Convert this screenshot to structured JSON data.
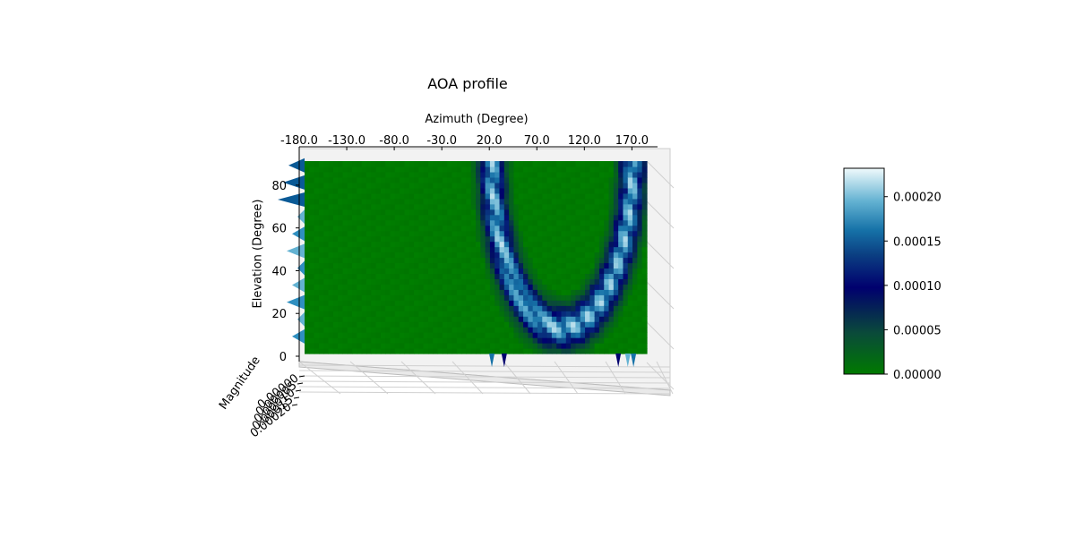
{
  "chart_data": {
    "type": "heatmap",
    "title": "AOA profile",
    "xlabel": "Azimuth (Degree)",
    "ylabel": "Elevation (Degree)",
    "zlabel": "Magnitude",
    "x_ticks": [
      "-180.0",
      "-130.0",
      "-80.0",
      "-30.0",
      "20.0",
      "70.0",
      "120.0",
      "170.0"
    ],
    "y_ticks": [
      "0",
      "20",
      "40",
      "60",
      "80"
    ],
    "z_ticks": [
      "0.00000",
      "0.00005",
      "0.00010",
      "0.00015",
      "0.00020"
    ],
    "xlim": [
      -180,
      180
    ],
    "ylim": [
      0,
      90
    ],
    "colormap": {
      "name": "ocean-like",
      "stops": [
        "#007a00",
        "#0a4a3a",
        "#00006e",
        "#0b3f82",
        "#1672a8",
        "#63b2d2",
        "#f0fafc"
      ]
    },
    "colorbar": {
      "ticks": [
        "0.00000",
        "0.00005",
        "0.00010",
        "0.00015",
        "0.00020"
      ],
      "tick_values": [
        0,
        5e-05,
        0.0001,
        0.00015,
        0.0002
      ],
      "range": [
        0,
        0.000232
      ]
    },
    "background_value": 0.0,
    "features": [
      {
        "shape": "u-arc",
        "azimuth_left": 17,
        "azimuth_right": 165,
        "azimuth_bottom_center": 91,
        "elevation_bottom": 12,
        "elevation_top": 90,
        "peak_value": 0.00022
      },
      {
        "shape": "edge-lobe",
        "azimuth": -180,
        "elevation_range": [
          8,
          90
        ],
        "peak_value": 0.00015
      }
    ]
  }
}
